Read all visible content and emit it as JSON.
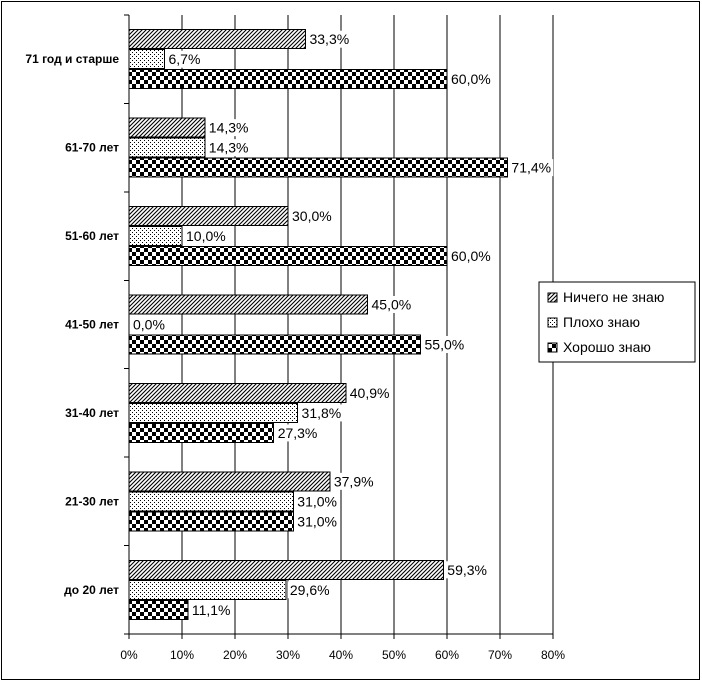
{
  "chart_data": {
    "type": "bar",
    "orientation": "horizontal",
    "categories": [
      "71 год и старше",
      "61-70 лет",
      "51-60 лет",
      "41-50 лет",
      "31-40 лет",
      "21-30 лет",
      "до 20 лет"
    ],
    "series": [
      {
        "name": "Ничего не знаю",
        "values": [
          33.3,
          14.3,
          30.0,
          45.0,
          40.9,
          37.9,
          59.3
        ],
        "labels": [
          "33,3%",
          "14,3%",
          "30,0%",
          "45,0%",
          "40,9%",
          "37,9%",
          "59,3%"
        ]
      },
      {
        "name": "Плохо знаю",
        "values": [
          6.7,
          14.3,
          10.0,
          0.0,
          31.8,
          31.0,
          29.6
        ],
        "labels": [
          "6,7%",
          "14,3%",
          "10,0%",
          "0,0%",
          "31,8%",
          "31,0%",
          "29,6%"
        ]
      },
      {
        "name": "Хорошо знаю",
        "values": [
          60.0,
          71.4,
          60.0,
          55.0,
          27.3,
          31.0,
          11.1
        ],
        "labels": [
          "60,0%",
          "71,4%",
          "60,0%",
          "55,0%",
          "27,3%",
          "31,0%",
          "11,1%"
        ]
      }
    ],
    "xlim": [
      0,
      80
    ],
    "xticks": [
      "0%",
      "10%",
      "20%",
      "30%",
      "40%",
      "50%",
      "60%",
      "70%",
      "80%"
    ],
    "grid": true,
    "legend_position": "right"
  }
}
